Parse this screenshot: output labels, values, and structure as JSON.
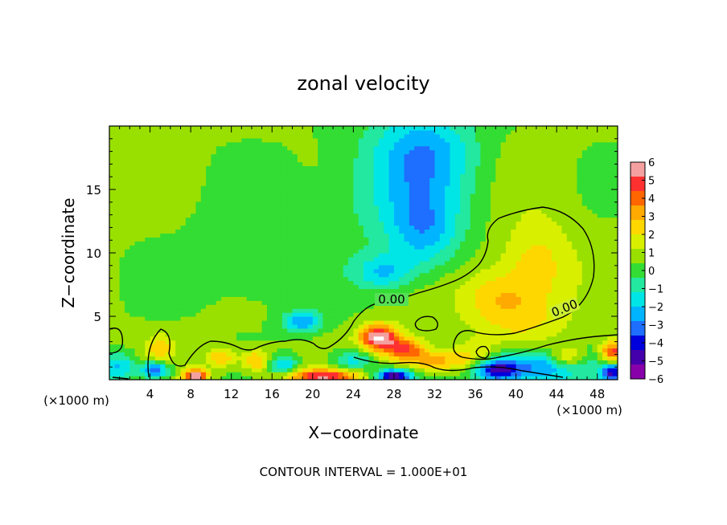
{
  "chart_data": {
    "type": "heatmap",
    "title": "zonal velocity",
    "xlabel": "X−coordinate",
    "ylabel": "Z−coordinate",
    "x_unit_left": "(×1000 m)",
    "x_unit_right": "(×1000 m)",
    "xlim": [
      0,
      50
    ],
    "ylim": [
      0,
      20
    ],
    "xticks": [
      4,
      8,
      12,
      16,
      20,
      24,
      28,
      32,
      36,
      40,
      44,
      48
    ],
    "xtick_labels": [
      "4",
      "8",
      "12",
      "16",
      "20",
      "24",
      "28",
      "32",
      "36",
      "40",
      "44",
      "48"
    ],
    "yticks": [
      5,
      10,
      15
    ],
    "ytick_labels": [
      "5",
      "10",
      "15"
    ],
    "colorbar": {
      "levels": [
        6,
        5,
        4,
        3,
        2,
        1,
        0,
        -1,
        -2,
        -3,
        -4,
        -5,
        -6
      ],
      "labels": [
        "6",
        "5",
        "4",
        "3",
        "2",
        "1",
        "0",
        "−1",
        "−2",
        "−3",
        "−4",
        "−5",
        "−6"
      ],
      "colors": [
        "#f4a0a0",
        "#ff3030",
        "#ff6600",
        "#ffaa00",
        "#ffd700",
        "#d8f000",
        "#99e000",
        "#33dd33",
        "#22e8a0",
        "#00e6e6",
        "#00b4ff",
        "#1e6eff",
        "#0000dd",
        "#4400aa",
        "#8800aa"
      ]
    },
    "contour_labels": [
      "0.00",
      "0.00"
    ],
    "footer": "CONTOUR INTERVAL = 1.000E+01",
    "background_value": 0.6,
    "features": [
      {
        "x": 31,
        "y": 18.5,
        "sx": 3.5,
        "sy": 2.5,
        "v": -2.6
      },
      {
        "x": 31,
        "y": 11.5,
        "sx": 2.5,
        "sy": 2.2,
        "v": -2.8
      },
      {
        "x": 27,
        "y": 8.5,
        "sx": 2.0,
        "sy": 1.0,
        "v": -2.5
      },
      {
        "x": 19,
        "y": 4.6,
        "sx": 1.3,
        "sy": 0.6,
        "v": -3.5
      },
      {
        "x": 28,
        "y": 15,
        "sx": 5,
        "sy": 3,
        "v": -1.8
      },
      {
        "x": 14,
        "y": 10,
        "sx": 4,
        "sy": 3,
        "v": -1.2
      },
      {
        "x": 42,
        "y": 9,
        "sx": 2.5,
        "sy": 2.5,
        "v": 2.2
      },
      {
        "x": 38,
        "y": 6.5,
        "sx": 2.5,
        "sy": 1.6,
        "v": 2.0
      },
      {
        "x": 41,
        "y": 4.5,
        "sx": 3,
        "sy": 1.5,
        "v": 1.2
      },
      {
        "x": 26.5,
        "y": 3.4,
        "sx": 1.3,
        "sy": 0.7,
        "v": 6.2
      },
      {
        "x": 29,
        "y": 2.5,
        "sx": 1.5,
        "sy": 0.6,
        "v": 4.0
      },
      {
        "x": 32,
        "y": 1.5,
        "sx": 2.5,
        "sy": 0.6,
        "v": 3.0
      },
      {
        "x": 21,
        "y": 0.3,
        "sx": 2.5,
        "sy": 0.4,
        "v": 5.0
      },
      {
        "x": 28,
        "y": 0.3,
        "sx": 1.2,
        "sy": 0.4,
        "v": -6.5
      },
      {
        "x": 8.5,
        "y": 0.3,
        "sx": 0.8,
        "sy": 0.4,
        "v": 6.0
      },
      {
        "x": 4.5,
        "y": 0.8,
        "sx": 1.0,
        "sy": 0.5,
        "v": -4.5
      },
      {
        "x": 1,
        "y": 1.0,
        "sx": 1.2,
        "sy": 0.8,
        "v": -3.0
      },
      {
        "x": 42,
        "y": 1.0,
        "sx": 3.5,
        "sy": 1.0,
        "v": -4.0
      },
      {
        "x": 38,
        "y": 0.8,
        "sx": 1.5,
        "sy": 0.6,
        "v": -4.5
      },
      {
        "x": 49.5,
        "y": 2.2,
        "sx": 0.8,
        "sy": 0.6,
        "v": 5.0
      },
      {
        "x": 49.5,
        "y": 0.6,
        "sx": 0.8,
        "sy": 0.5,
        "v": -5.0
      },
      {
        "x": 14.5,
        "y": 1.5,
        "sx": 1.0,
        "sy": 0.6,
        "v": 3.0
      },
      {
        "x": 11,
        "y": 1.8,
        "sx": 1.0,
        "sy": 0.6,
        "v": 2.5
      },
      {
        "x": 17,
        "y": 1.2,
        "sx": 1.0,
        "sy": 0.5,
        "v": -3.0
      },
      {
        "x": 5,
        "y": 2.5,
        "sx": 1.0,
        "sy": 0.8,
        "v": 2.0
      },
      {
        "x": 24,
        "y": 1.5,
        "sx": 1.5,
        "sy": 0.6,
        "v": -2.5
      },
      {
        "x": 36,
        "y": 2.0,
        "sx": 1.5,
        "sy": 0.8,
        "v": 1.5
      },
      {
        "x": 45,
        "y": 1.8,
        "sx": 1.2,
        "sy": 0.6,
        "v": 3.0
      }
    ]
  }
}
